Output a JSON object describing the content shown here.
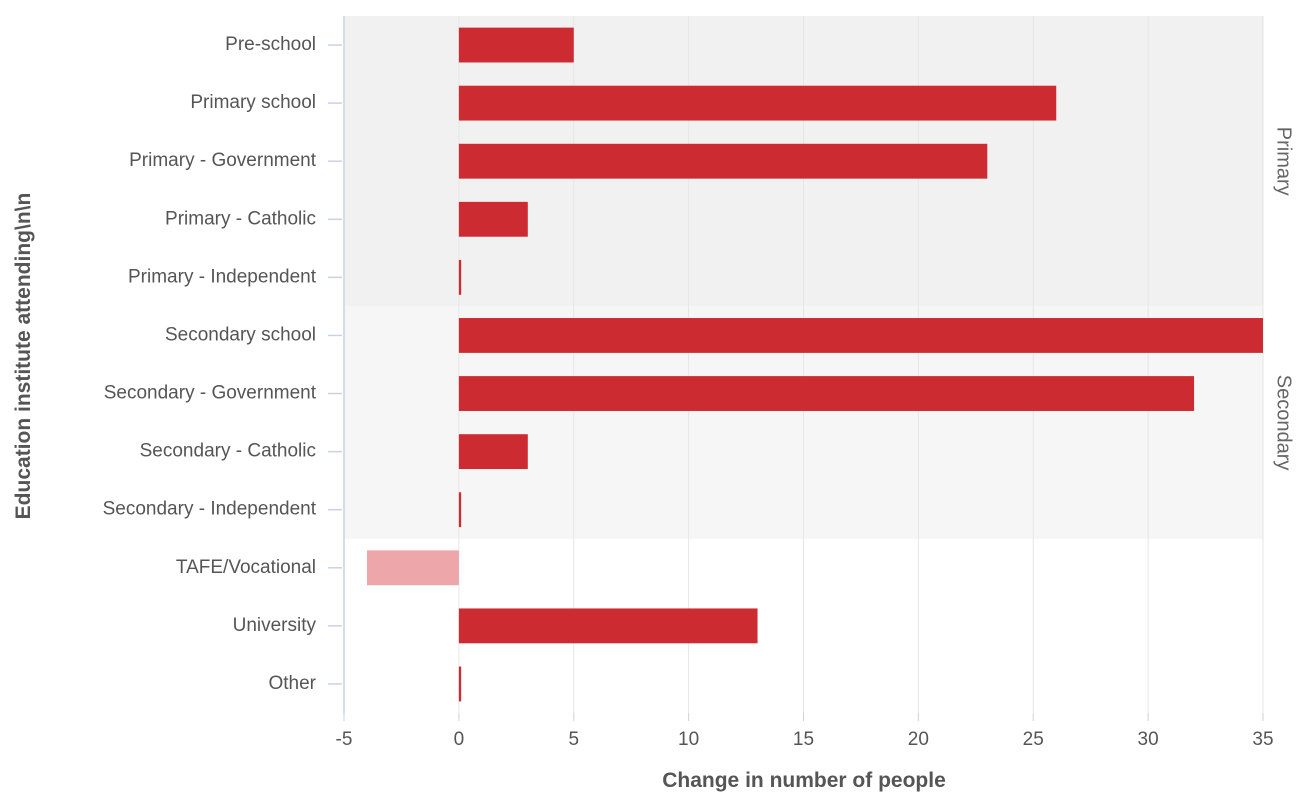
{
  "chart_data": {
    "type": "bar",
    "orientation": "horizontal",
    "title": "",
    "xlabel": "Change in number of people",
    "ylabel": "Education institute attending\\n\\n",
    "xlim": [
      -5,
      35
    ],
    "xticks": [
      -5,
      0,
      5,
      10,
      15,
      20,
      25,
      30,
      35
    ],
    "grid": true,
    "legend": "none",
    "categories": [
      "Pre-school",
      "Primary school",
      "Primary - Government",
      "Primary - Catholic",
      "Primary - Independent",
      "Secondary school",
      "Secondary - Government",
      "Secondary - Catholic",
      "Secondary - Independent",
      "TAFE/Vocational",
      "University",
      "Other"
    ],
    "values": [
      5,
      26,
      23,
      3,
      0.1,
      35,
      32,
      3,
      0.1,
      -4,
      13,
      0.1
    ],
    "bands": [
      {
        "label": "Primary",
        "from": 0,
        "to": 4,
        "color": "#f1f1f1"
      },
      {
        "label": "Secondary",
        "from": 5,
        "to": 8,
        "color": "#f6f6f6"
      }
    ],
    "colors": {
      "positive": "#cc2b32",
      "negative": "#eda7aa",
      "grid": "#e6e6e6",
      "axis": "#c9d2e3"
    }
  }
}
